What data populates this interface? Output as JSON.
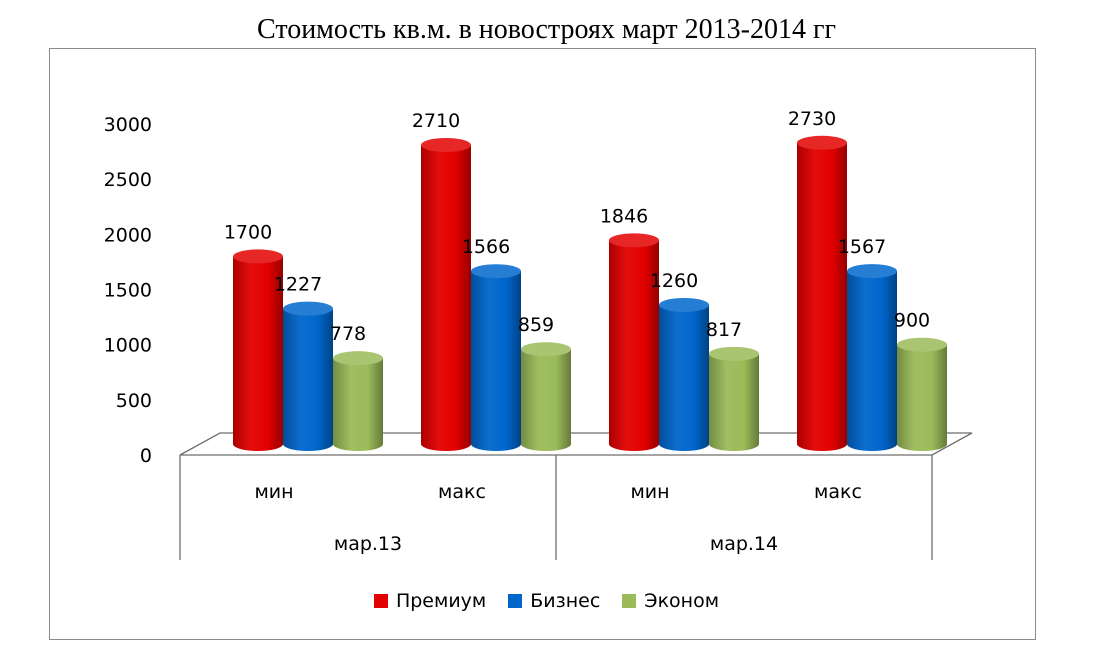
{
  "chart_data": {
    "type": "bar",
    "title": "Стоимость кв.м. в новостроях март 2013-2014 гг",
    "groups": [
      {
        "label": "мар.13",
        "categories": [
          "мин",
          "макс"
        ]
      },
      {
        "label": "мар.14",
        "categories": [
          "мин",
          "макс"
        ]
      }
    ],
    "categories": [
      "мин",
      "макс",
      "мин",
      "макс"
    ],
    "series": [
      {
        "name": "Премиум",
        "color": "#e30000",
        "values": [
          1700,
          2710,
          1846,
          2730
        ]
      },
      {
        "name": "Бизнес",
        "color": "#0066cc",
        "values": [
          1227,
          1566,
          1260,
          1567
        ]
      },
      {
        "name": "Эконом",
        "color": "#9bbb59",
        "values": [
          778,
          859,
          817,
          900
        ]
      }
    ],
    "yticks": [
      0,
      500,
      1000,
      1500,
      2000,
      2500,
      3000
    ],
    "ylim": [
      0,
      3000
    ],
    "grid": false,
    "legend_position": "bottom",
    "style": "3d-cylinder"
  }
}
